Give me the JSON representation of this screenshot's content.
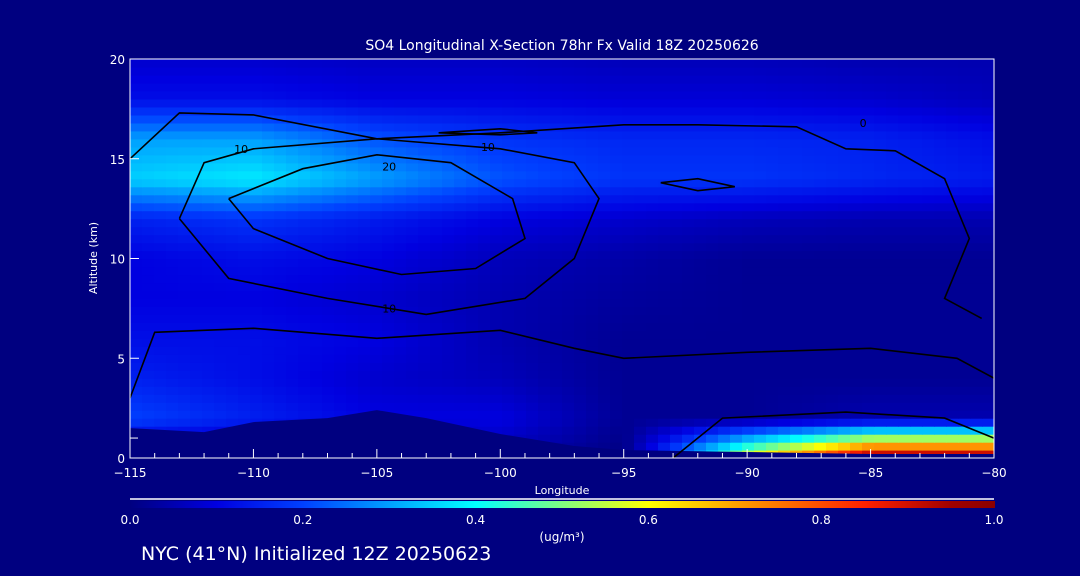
{
  "chart_data": {
    "type": "heatmap",
    "title": "SO4 Longitudinal X-Section 78hr  Fx Valid 18Z 20250626",
    "xlabel": "Longitude",
    "ylabel": "Altitude (km)",
    "xlim": [
      -115,
      -80
    ],
    "ylim": [
      0,
      20
    ],
    "xticks": [
      -115,
      -110,
      -105,
      -100,
      -95,
      -90,
      -85,
      -80
    ],
    "xtick_labels": [
      "−115",
      "−110",
      "−105",
      "−100",
      "−95",
      "−90",
      "−85",
      "−80"
    ],
    "yticks": [
      0,
      5,
      10,
      15,
      20
    ],
    "ytick_labels": [
      "0",
      "5",
      "10",
      "15",
      "20"
    ],
    "grid_lon": [
      -115,
      -110,
      -105,
      -100,
      -95,
      -90,
      -85,
      -80
    ],
    "grid_alt": [
      0,
      2,
      4,
      6,
      8,
      10,
      12,
      14,
      16,
      18,
      20
    ],
    "values": [
      [
        0.0,
        0.0,
        0.0,
        0.05,
        0.0,
        0.6,
        1.0,
        1.0
      ],
      [
        0.2,
        0.15,
        0.1,
        0.1,
        0.02,
        0.02,
        0.05,
        0.05
      ],
      [
        0.15,
        0.12,
        0.08,
        0.06,
        0.02,
        0.02,
        0.02,
        0.02
      ],
      [
        0.12,
        0.12,
        0.1,
        0.05,
        0.02,
        0.02,
        0.02,
        0.02
      ],
      [
        0.1,
        0.1,
        0.08,
        0.05,
        0.03,
        0.02,
        0.02,
        0.02
      ],
      [
        0.1,
        0.12,
        0.1,
        0.06,
        0.04,
        0.02,
        0.02,
        0.02
      ],
      [
        0.15,
        0.18,
        0.14,
        0.1,
        0.08,
        0.06,
        0.05,
        0.05
      ],
      [
        0.35,
        0.38,
        0.3,
        0.22,
        0.18,
        0.18,
        0.16,
        0.14
      ],
      [
        0.3,
        0.3,
        0.22,
        0.18,
        0.16,
        0.16,
        0.15,
        0.12
      ],
      [
        0.12,
        0.12,
        0.1,
        0.1,
        0.09,
        0.09,
        0.08,
        0.06
      ],
      [
        0.08,
        0.08,
        0.07,
        0.07,
        0.06,
        0.06,
        0.05,
        0.05
      ]
    ],
    "terrain": [
      [
        -115,
        1.5
      ],
      [
        -112,
        1.3
      ],
      [
        -110,
        1.8
      ],
      [
        -107,
        2.0
      ],
      [
        -105,
        2.4
      ],
      [
        -103,
        2.0
      ],
      [
        -100,
        1.2
      ],
      [
        -97,
        0.6
      ],
      [
        -95,
        0.4
      ],
      [
        -90,
        0.3
      ],
      [
        -85,
        0.2
      ],
      [
        -80,
        0.2
      ]
    ],
    "contours": [
      {
        "level": "20",
        "label_at": [
          -104.5,
          14.6
        ],
        "points": [
          [
            -111,
            13
          ],
          [
            -108,
            14.5
          ],
          [
            -105,
            15.2
          ],
          [
            -102,
            14.8
          ],
          [
            -99.5,
            13
          ],
          [
            -99,
            11
          ],
          [
            -101,
            9.5
          ],
          [
            -104,
            9.2
          ],
          [
            -107,
            10
          ],
          [
            -110,
            11.5
          ],
          [
            -111,
            13
          ]
        ]
      },
      {
        "level": "10",
        "label_at": [
          -110.5,
          15.5
        ],
        "points": [
          [
            -113,
            12
          ],
          [
            -112,
            14.8
          ],
          [
            -110,
            15.5
          ],
          [
            -105,
            16
          ],
          [
            -100,
            15.5
          ],
          [
            -97,
            14.8
          ],
          [
            -96,
            13
          ],
          [
            -97,
            10
          ],
          [
            -99,
            8
          ],
          [
            -103,
            7.2
          ],
          [
            -107,
            8
          ],
          [
            -111,
            9
          ],
          [
            -113,
            12
          ]
        ]
      },
      {
        "level": "10",
        "label_at": [
          -100.5,
          15.6
        ],
        "points": [
          [
            -102.5,
            16.3
          ],
          [
            -100,
            16.5
          ],
          [
            -98.5,
            16.3
          ],
          [
            -100,
            16.2
          ],
          [
            -102.5,
            16.3
          ]
        ]
      },
      {
        "level": "10",
        "label_at": [
          -104.5,
          7.5
        ],
        "points": []
      },
      {
        "level": "0",
        "label_at": [
          -85.3,
          16.8
        ],
        "points": [
          [
            -115,
            15
          ],
          [
            -113,
            17.3
          ],
          [
            -110,
            17.2
          ],
          [
            -105,
            16
          ],
          [
            -100,
            16.3
          ],
          [
            -95,
            16.7
          ],
          [
            -92,
            16.7
          ],
          [
            -88,
            16.6
          ],
          [
            -86,
            15.5
          ],
          [
            -84,
            15.4
          ],
          [
            -82,
            14
          ],
          [
            -81,
            11
          ],
          [
            -82,
            8
          ],
          [
            -80.5,
            7
          ]
        ]
      },
      {
        "level": "",
        "label_at": null,
        "points": [
          [
            -115,
            3
          ],
          [
            -114,
            6.3
          ],
          [
            -110,
            6.5
          ],
          [
            -105,
            6
          ],
          [
            -100,
            6.4
          ],
          [
            -97,
            5.5
          ],
          [
            -95,
            5
          ],
          [
            -90,
            5.3
          ],
          [
            -85,
            5.5
          ],
          [
            -81.5,
            5
          ],
          [
            -80,
            4
          ]
        ]
      },
      {
        "level": "",
        "label_at": null,
        "points": [
          [
            -93,
            0
          ],
          [
            -91,
            2
          ],
          [
            -86,
            2.3
          ],
          [
            -82,
            2
          ],
          [
            -80,
            1
          ]
        ]
      },
      {
        "level": "",
        "label_at": null,
        "points": [
          [
            -93.5,
            13.8
          ],
          [
            -92,
            14
          ],
          [
            -90.5,
            13.6
          ],
          [
            -92,
            13.4
          ],
          [
            -93.5,
            13.8
          ]
        ]
      }
    ],
    "colorbar": {
      "min": 0.0,
      "max": 1.0,
      "tick_labels": [
        "0.0",
        "0.2",
        "0.4",
        "0.6",
        "0.8",
        "1.0"
      ],
      "units": "(ug/m³)"
    },
    "grid": false
  },
  "footer": "NYC (41°N) Initialized 12Z 20250623"
}
